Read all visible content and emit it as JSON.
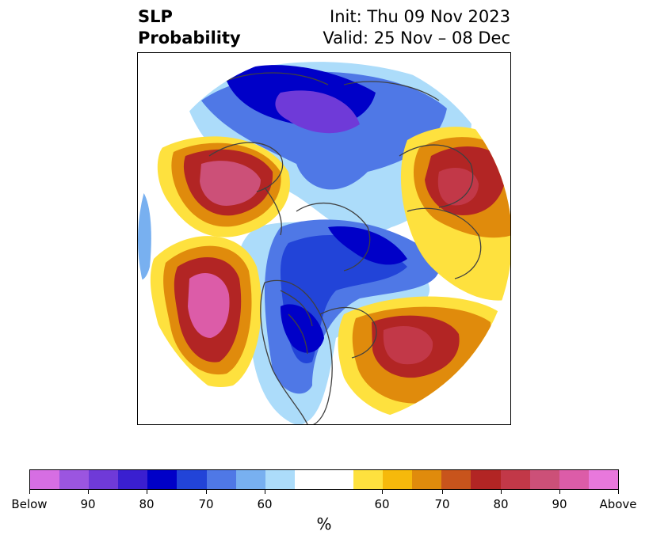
{
  "title": {
    "left_line1": "SLP",
    "left_line2": "Probability",
    "right_line1": "Init: Thu 09 Nov 2023",
    "right_line2": "Valid: 25 Nov – 08 Dec"
  },
  "map": {
    "projection": "polar stereographic (north polar)",
    "features": [
      "coastlines",
      "country borders",
      "US state borders"
    ]
  },
  "colorbar": {
    "colors": [
      "#d66ee3",
      "#9b55e0",
      "#6f3ad8",
      "#3a1fd0",
      "#0000c8",
      "#2244d8",
      "#4f78e6",
      "#78b0f0",
      "#acdcfa",
      "#ffffff",
      "#ffffff",
      "#fee13e",
      "#f6b90b",
      "#e08b0c",
      "#c8541c",
      "#b22524",
      "#c23848",
      "#cc5078",
      "#dc5ca8",
      "#e878dc"
    ],
    "ticks": [
      {
        "label": "Below"
      },
      {
        "label": "90"
      },
      {
        "label": "80"
      },
      {
        "label": "70"
      },
      {
        "label": "60"
      },
      {
        "label": "60"
      },
      {
        "label": "70"
      },
      {
        "label": "80"
      },
      {
        "label": "90"
      },
      {
        "label": "Above"
      }
    ],
    "unit_label": "%"
  }
}
